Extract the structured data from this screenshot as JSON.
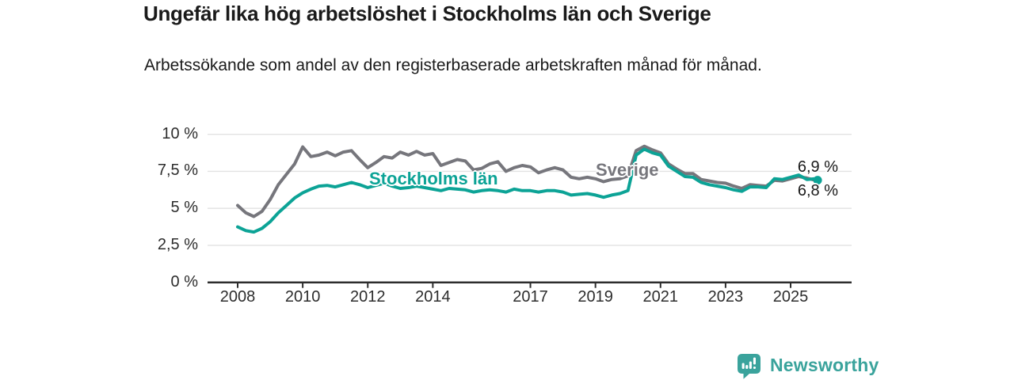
{
  "chart_data": {
    "type": "line",
    "title": "Ungefär lika hög arbetslöshet i Stockholms län och Sverige",
    "subtitle": "Arbetssökande som andel av den registerbaserade arbetskraften månad för månad.",
    "xlabel": "",
    "ylabel": "",
    "ylim": [
      0,
      10
    ],
    "xlim": [
      2007.1,
      2026.3
    ],
    "grid": true,
    "legend_position": "inline-labels-on-lines",
    "x": [
      2008,
      2008.25,
      2008.5,
      2008.75,
      2009,
      2009.25,
      2009.5,
      2009.75,
      2010,
      2010.25,
      2010.5,
      2010.75,
      2011,
      2011.25,
      2011.5,
      2011.75,
      2012,
      2012.25,
      2012.5,
      2012.75,
      2013,
      2013.25,
      2013.5,
      2013.75,
      2014,
      2014.25,
      2014.5,
      2014.75,
      2015,
      2015.25,
      2015.5,
      2015.75,
      2016,
      2016.25,
      2016.5,
      2016.75,
      2017,
      2017.25,
      2017.5,
      2017.75,
      2018,
      2018.25,
      2018.5,
      2018.75,
      2019,
      2019.25,
      2019.5,
      2019.75,
      2020,
      2020.25,
      2020.5,
      2020.75,
      2021,
      2021.25,
      2021.5,
      2021.75,
      2022,
      2022.25,
      2022.5,
      2022.75,
      2023,
      2023.25,
      2023.5,
      2023.75,
      2024,
      2024.25,
      2024.5,
      2024.75,
      2025,
      2025.25,
      2025.5,
      2025.75,
      2025.83
    ],
    "series": [
      {
        "name": "Stockholms län",
        "color": "#0ca396",
        "end_label": "6,9 %",
        "end_value": 6.9,
        "values": [
          3.75,
          3.5,
          3.4,
          3.65,
          4.1,
          4.7,
          5.2,
          5.7,
          6.05,
          6.3,
          6.5,
          6.55,
          6.45,
          6.6,
          6.75,
          6.6,
          6.4,
          6.55,
          6.7,
          6.5,
          6.35,
          6.4,
          6.5,
          6.4,
          6.3,
          6.2,
          6.35,
          6.3,
          6.25,
          6.1,
          6.2,
          6.25,
          6.2,
          6.1,
          6.3,
          6.2,
          6.2,
          6.1,
          6.2,
          6.2,
          6.1,
          5.9,
          5.95,
          6.0,
          5.9,
          5.75,
          5.9,
          6.0,
          6.2,
          8.6,
          9.0,
          8.75,
          8.6,
          7.85,
          7.5,
          7.15,
          7.1,
          6.75,
          6.6,
          6.5,
          6.4,
          6.25,
          6.15,
          6.45,
          6.45,
          6.4,
          7.0,
          6.95,
          7.1,
          7.25,
          6.95,
          7.0,
          6.9
        ]
      },
      {
        "name": "Sverige",
        "color": "#76767c",
        "end_label": "6,8 %",
        "end_value": 6.8,
        "values": [
          5.2,
          4.7,
          4.45,
          4.8,
          5.6,
          6.6,
          7.3,
          8.0,
          9.15,
          8.5,
          8.6,
          8.8,
          8.55,
          8.8,
          8.9,
          8.3,
          7.75,
          8.1,
          8.5,
          8.4,
          8.8,
          8.6,
          8.85,
          8.6,
          8.7,
          7.9,
          8.1,
          8.3,
          8.2,
          7.6,
          7.7,
          8.0,
          8.15,
          7.5,
          7.75,
          7.9,
          7.8,
          7.4,
          7.6,
          7.75,
          7.6,
          7.1,
          7.0,
          7.1,
          7.0,
          6.8,
          6.95,
          7.0,
          7.2,
          8.9,
          9.2,
          8.95,
          8.75,
          8.0,
          7.65,
          7.35,
          7.35,
          6.95,
          6.85,
          6.75,
          6.7,
          6.5,
          6.35,
          6.6,
          6.55,
          6.5,
          6.9,
          6.85,
          7.0,
          7.15,
          7.05,
          6.9,
          6.8
        ]
      }
    ],
    "yticks": [
      {
        "value": 0,
        "label": "0 %"
      },
      {
        "value": 2.5,
        "label": "2,5 %"
      },
      {
        "value": 5,
        "label": "5 %"
      },
      {
        "value": 7.5,
        "label": "7,5 %"
      },
      {
        "value": 10,
        "label": "10 %"
      }
    ],
    "xticks": [
      {
        "value": 2008,
        "label": "2008"
      },
      {
        "value": 2010,
        "label": "2010"
      },
      {
        "value": 2012,
        "label": "2012"
      },
      {
        "value": 2014,
        "label": "2014"
      },
      {
        "value": 2017,
        "label": "2017"
      },
      {
        "value": 2019,
        "label": "2019"
      },
      {
        "value": 2021,
        "label": "2021"
      },
      {
        "value": 2023,
        "label": "2023"
      },
      {
        "value": 2025,
        "label": "2025"
      }
    ]
  },
  "colors": {
    "stockholm_line": "#0ca396",
    "sverige_line": "#76767c",
    "gridline": "#e2e2e2",
    "axis": "#2d2d2d",
    "logo": "#3aa39c"
  },
  "branding": {
    "logo_text": "Newsworthy",
    "logo_icon": "bar-chart-speech-bubble"
  }
}
